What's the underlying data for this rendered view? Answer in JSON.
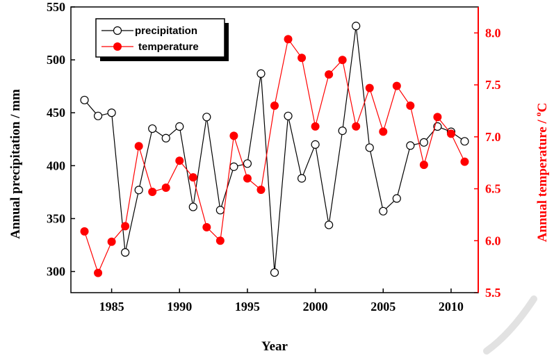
{
  "colors": {
    "precipitation": "#000000",
    "temperature": "#ff0000",
    "frame": "#000000",
    "watermark": "#d4d4d4"
  },
  "chart_data": {
    "type": "line",
    "xlabel": "Year",
    "ylabel_left": "Annual precipitation / mm",
    "ylabel_right_main": "Annual temperature / ",
    "ylabel_right_sup": "o",
    "ylabel_right_unit": "C",
    "xlim": [
      1982,
      2012
    ],
    "ylim_left": [
      280,
      550
    ],
    "ylim_right": [
      5.5,
      8.25
    ],
    "xticks": [
      1985,
      1990,
      1995,
      2000,
      2005,
      2010
    ],
    "xtick_labels": [
      "1985",
      "1990",
      "1995",
      "2000",
      "2005",
      "2010"
    ],
    "yticks_left": [
      300,
      350,
      400,
      450,
      500,
      550
    ],
    "ytick_labels_left": [
      "300",
      "350",
      "400",
      "450",
      "500",
      "550"
    ],
    "yticks_right": [
      5.5,
      6.0,
      6.5,
      7.0,
      7.5,
      8.0
    ],
    "ytick_labels_right": [
      "5.5",
      "6.0",
      "6.5",
      "7.0",
      "7.5",
      "8.0"
    ],
    "grid": false,
    "legend_position": "top-left",
    "x": [
      1983,
      1984,
      1985,
      1986,
      1987,
      1988,
      1989,
      1990,
      1991,
      1992,
      1993,
      1994,
      1995,
      1996,
      1997,
      1998,
      1999,
      2000,
      2001,
      2002,
      2003,
      2004,
      2005,
      2006,
      2007,
      2008,
      2009,
      2010,
      2011
    ],
    "series": [
      {
        "name": "precipitation",
        "axis": "left",
        "marker": "open-circle",
        "values": [
          462,
          447,
          450,
          318,
          377,
          435,
          426,
          437,
          361,
          446,
          358,
          399,
          402,
          487,
          299,
          447,
          388,
          420,
          344,
          433,
          532,
          417,
          357,
          369,
          419,
          422,
          437,
          432,
          423
        ]
      },
      {
        "name": "temperature",
        "axis": "right",
        "marker": "filled-circle",
        "values": [
          6.09,
          5.69,
          5.99,
          6.14,
          6.91,
          6.47,
          6.51,
          6.77,
          6.61,
          6.13,
          6.0,
          7.01,
          6.6,
          6.49,
          7.3,
          7.94,
          7.76,
          7.1,
          7.6,
          7.74,
          7.1,
          7.47,
          7.05,
          7.49,
          7.3,
          6.73,
          7.19,
          7.03,
          6.76
        ]
      }
    ]
  }
}
